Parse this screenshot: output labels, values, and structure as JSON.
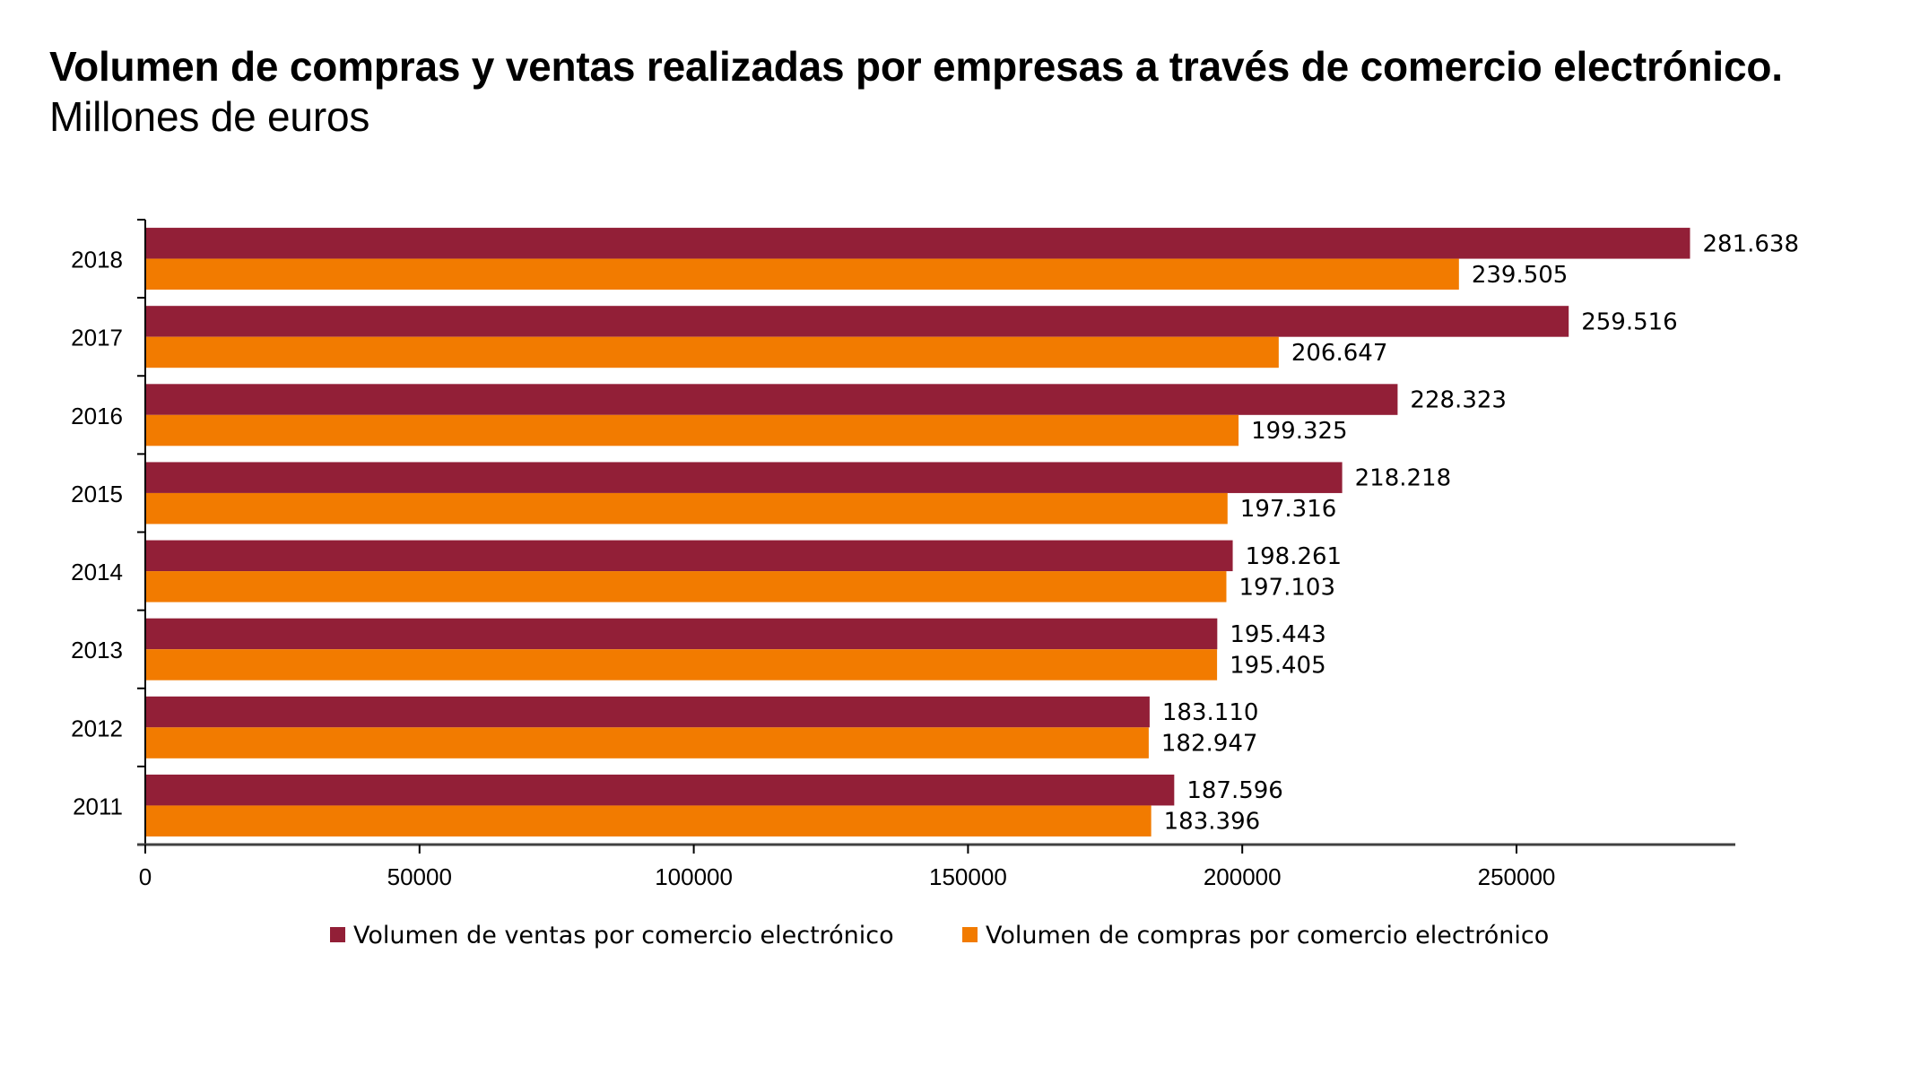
{
  "title": {
    "bold_part": "Volumen de compras y ventas realizadas por empresas a través de comercio electrónico.",
    "normal_part": " Millones de euros"
  },
  "colors": {
    "ventas": "#921F37",
    "compras": "#F27B00",
    "axis": "#404040"
  },
  "chart_data": {
    "type": "bar",
    "orientation": "horizontal",
    "title": "Volumen de compras y ventas realizadas por empresas a través de comercio electrónico. Millones de euros",
    "xlabel": "",
    "ylabel": "",
    "categories": [
      "2018",
      "2017",
      "2016",
      "2015",
      "2014",
      "2013",
      "2012",
      "2011"
    ],
    "series": [
      {
        "name": "Volumen de ventas por comercio electrónico",
        "color": "#921F37",
        "values": [
          281638,
          259516,
          228323,
          218218,
          198261,
          195443,
          183110,
          187596
        ],
        "labels": [
          "281.638",
          "259.516",
          "228.323",
          "218.218",
          "198.261",
          "195.443",
          "183.110",
          "187.596"
        ]
      },
      {
        "name": "Volumen de compras por comercio electrónico",
        "color": "#F27B00",
        "values": [
          239505,
          206647,
          199325,
          197316,
          197103,
          195405,
          182947,
          183396
        ],
        "labels": [
          "239.505",
          "206.647",
          "199.325",
          "197.316",
          "197.103",
          "195.405",
          "182.947",
          "183.396"
        ]
      }
    ],
    "x_ticks": [
      0,
      50000,
      100000,
      150000,
      200000,
      250000
    ],
    "x_tick_labels": [
      "0",
      "50000",
      "100000",
      "150000",
      "200000",
      "250000"
    ],
    "xlim": [
      0,
      290000
    ],
    "grid": false,
    "legend": "bottom"
  }
}
